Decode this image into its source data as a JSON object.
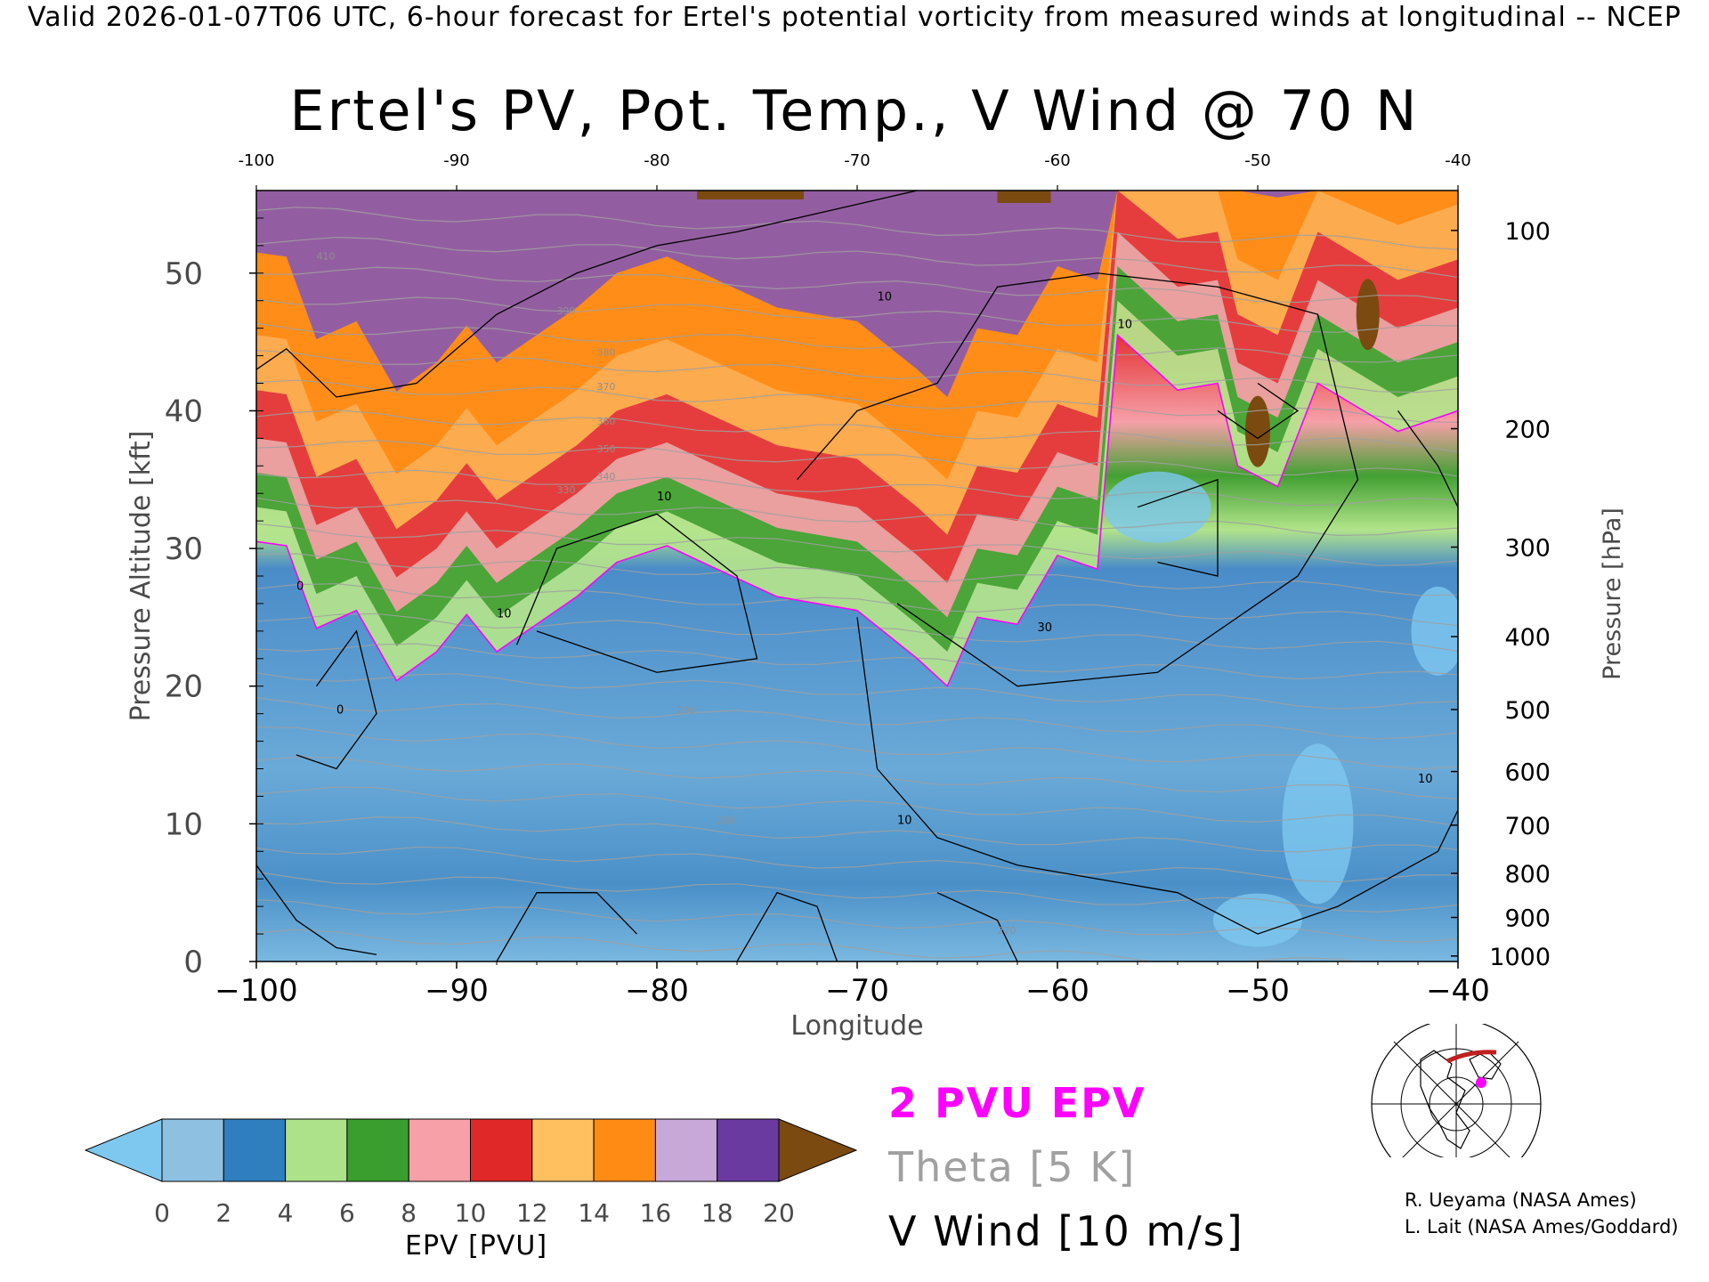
{
  "header": "Valid 2026-01-07T06 UTC, 6-hour forecast for Ertel's potential vorticity from measured winds at longitudinal -- NCEP",
  "chart_data": {
    "type": "heatmap",
    "title": "Ertel's PV, Pot. Temp., V Wind @ 70 N",
    "xlabel": "Longitude",
    "ylabel": "Pressure Altitude [kft]",
    "ylabel_right": "Pressure [hPa]",
    "xlim": [
      -100,
      -40
    ],
    "ylim": [
      0,
      56
    ],
    "x_ticks": [
      -100,
      -90,
      -80,
      -70,
      -60,
      -50,
      -40
    ],
    "x_tick_labels_bottom": [
      "−100",
      "−90",
      "−80",
      "−70",
      "−60",
      "−50",
      "−40"
    ],
    "x_tick_labels_top": [
      "-100",
      "-90",
      "-80",
      "-70",
      "-60",
      "-50",
      "-40"
    ],
    "y_ticks": [
      0,
      10,
      20,
      30,
      40,
      50
    ],
    "y_tick_labels": [
      "0",
      "10",
      "20",
      "30",
      "40",
      "50"
    ],
    "pressure_ticks": [
      {
        "label": "100",
        "kft": 53.1
      },
      {
        "label": "200",
        "kft": 38.7
      },
      {
        "label": "300",
        "kft": 30.1
      },
      {
        "label": "400",
        "kft": 23.6
      },
      {
        "label": "500",
        "kft": 18.3
      },
      {
        "label": "600",
        "kft": 13.8
      },
      {
        "label": "700",
        "kft": 9.9
      },
      {
        "label": "800",
        "kft": 6.4
      },
      {
        "label": "900",
        "kft": 3.2
      },
      {
        "label": "1000",
        "kft": 0.4
      }
    ],
    "colorbar": {
      "label": "EPV [PVU]",
      "ticks": [
        "0",
        "2",
        "4",
        "6",
        "8",
        "10",
        "12",
        "14",
        "16",
        "18",
        "20"
      ],
      "under_color": "#7ec8f0",
      "over_color": "#7b4a10",
      "colors": [
        "#8ec0e2",
        "#2f7fbf",
        "#aee28a",
        "#3a9e2e",
        "#f8a0a8",
        "#e02828",
        "#ffc060",
        "#ff8a14",
        "#c8a8d8",
        "#6a3aa0"
      ]
    },
    "pv_2pvu_boundary_kft": [
      {
        "x": -100,
        "y": 30.5
      },
      {
        "x": -98.5,
        "y": 30.2
      },
      {
        "x": -97,
        "y": 24.2
      },
      {
        "x": -95,
        "y": 25.5
      },
      {
        "x": -93,
        "y": 20.4
      },
      {
        "x": -91,
        "y": 22.5
      },
      {
        "x": -89.5,
        "y": 25.2
      },
      {
        "x": -88,
        "y": 22.5
      },
      {
        "x": -86,
        "y": 24.5
      },
      {
        "x": -84,
        "y": 26.5
      },
      {
        "x": -82,
        "y": 29
      },
      {
        "x": -79.5,
        "y": 30.2
      },
      {
        "x": -77,
        "y": 28.5
      },
      {
        "x": -74,
        "y": 26.5
      },
      {
        "x": -70,
        "y": 25.5
      },
      {
        "x": -67,
        "y": 22
      },
      {
        "x": -65.5,
        "y": 20
      },
      {
        "x": -64,
        "y": 25
      },
      {
        "x": -62,
        "y": 24.5
      },
      {
        "x": -60,
        "y": 29.5
      },
      {
        "x": -58,
        "y": 28.5
      },
      {
        "x": -57,
        "y": 45.5
      },
      {
        "x": -54,
        "y": 41.5
      },
      {
        "x": -52,
        "y": 42
      },
      {
        "x": -51,
        "y": 36
      },
      {
        "x": -49,
        "y": 34.5
      },
      {
        "x": -47,
        "y": 42
      },
      {
        "x": -43,
        "y": 38.5
      },
      {
        "x": -40,
        "y": 40
      }
    ],
    "theta_labels": [
      "410",
      "390",
      "380",
      "370",
      "360",
      "350",
      "340",
      "330",
      "290",
      "280",
      "270"
    ],
    "v_wind_contour_labels": [
      "0",
      "10",
      "30"
    ],
    "legend": [
      {
        "label": "2 PVU EPV",
        "color": "#ff00ff"
      },
      {
        "label": "Theta [5 K]",
        "color": "#a0a0a0"
      },
      {
        "label": "V Wind [10 m/s]",
        "color": "#000000"
      }
    ],
    "grid": false
  },
  "credits": [
    "R. Ueyama (NASA Ames)",
    "L. Lait (NASA Ames/Goddard)"
  ],
  "map_icon": "polar-stereographic-locator-map-icon"
}
